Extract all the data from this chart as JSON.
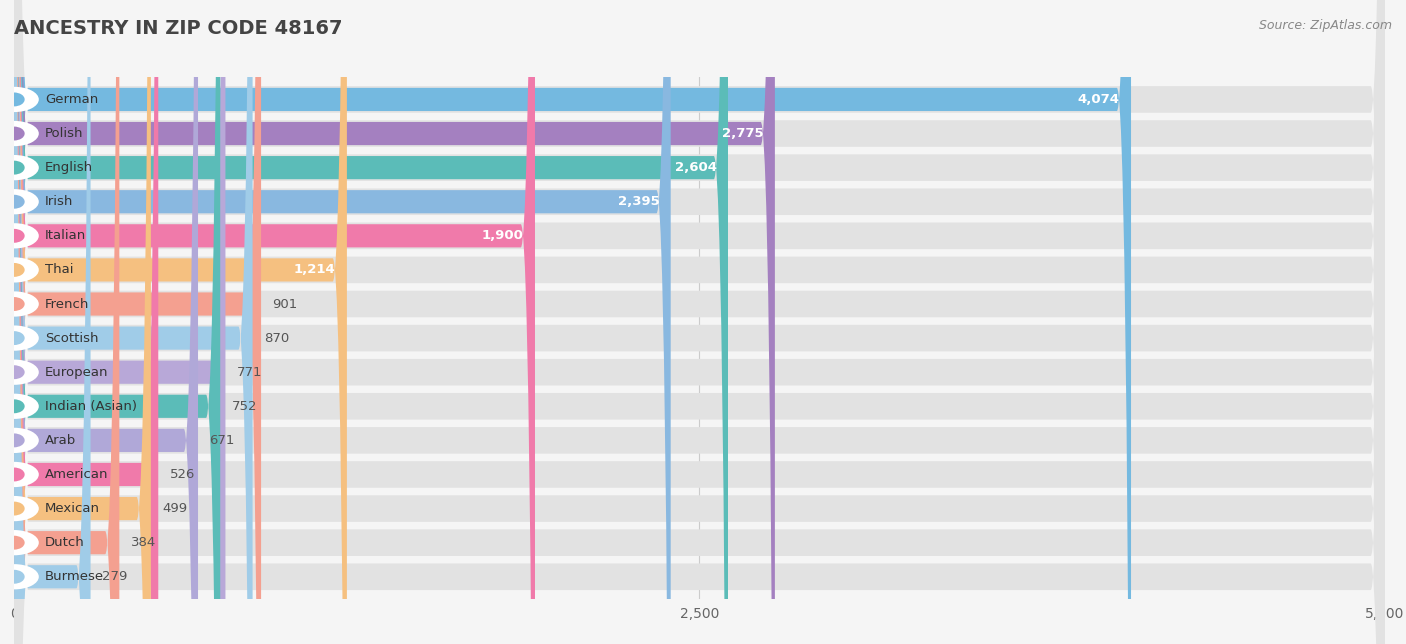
{
  "title": "ANCESTRY IN ZIP CODE 48167",
  "source": "Source: ZipAtlas.com",
  "categories": [
    "German",
    "Polish",
    "English",
    "Irish",
    "Italian",
    "Thai",
    "French",
    "Scottish",
    "European",
    "Indian (Asian)",
    "Arab",
    "American",
    "Mexican",
    "Dutch",
    "Burmese"
  ],
  "values": [
    4074,
    2775,
    2604,
    2395,
    1900,
    1214,
    901,
    870,
    771,
    752,
    671,
    526,
    499,
    384,
    279
  ],
  "bar_colors": [
    "#74b9e0",
    "#a480c0",
    "#5bbcb8",
    "#89b8e0",
    "#f07aaa",
    "#f5c080",
    "#f4a090",
    "#a0cce8",
    "#b8a8d8",
    "#5bbcb8",
    "#b0a8d8",
    "#f07aaa",
    "#f5c080",
    "#f4a090",
    "#a0cce8"
  ],
  "xlim": [
    0,
    5000
  ],
  "xticks": [
    0,
    2500,
    5000
  ],
  "background_color": "#f5f5f5",
  "bar_bg_color": "#e2e2e2",
  "title_fontsize": 14,
  "label_fontsize": 9.5,
  "value_fontsize": 9.5,
  "value_threshold_inside": 1200
}
